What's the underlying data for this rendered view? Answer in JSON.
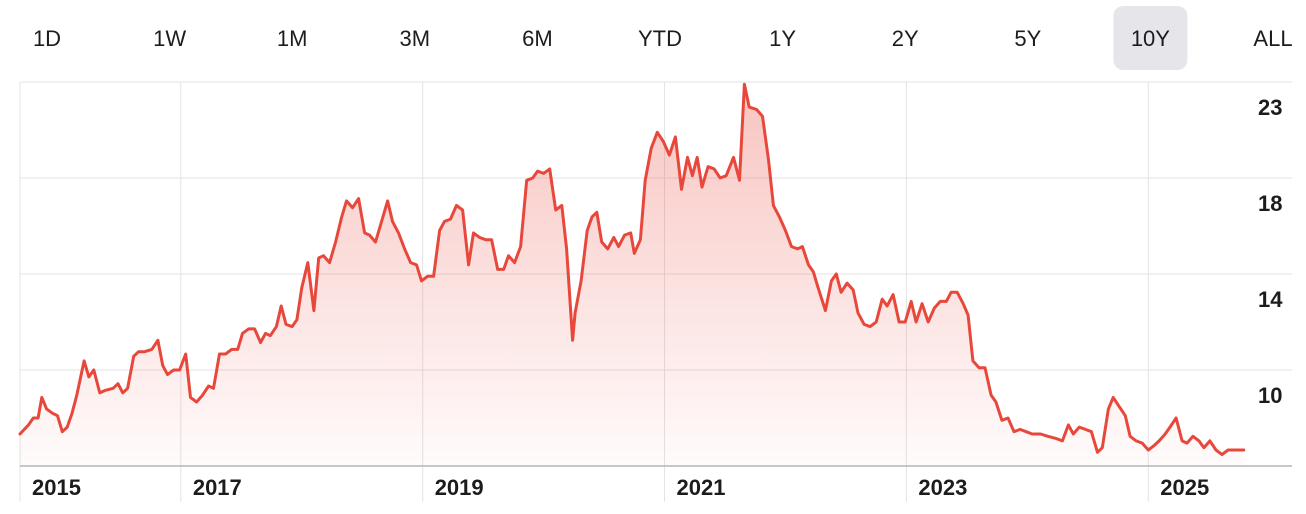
{
  "range_buttons": {
    "labels": [
      "1D",
      "1W",
      "1M",
      "3M",
      "6M",
      "YTD",
      "1Y",
      "2Y",
      "5Y",
      "10Y",
      "ALL"
    ],
    "selected": 9
  },
  "chart_data": {
    "type": "area",
    "color": "#e8483c",
    "grid": true,
    "xlim": [
      2015.67,
      2025.8
    ],
    "ylim": [
      5.8,
      22.6
    ],
    "xticks": [
      {
        "value": 2015.67,
        "label": "2015"
      },
      2017,
      2019,
      2021,
      2023,
      2025
    ],
    "yticks": [
      10,
      {
        "value": 14.2,
        "label": "14"
      },
      {
        "value": 18.4,
        "label": "18"
      },
      {
        "value": 22.6,
        "label": "23"
      }
    ],
    "x": [
      2015.67,
      2015.74,
      2015.78,
      2015.82,
      2015.85,
      2015.89,
      2015.94,
      2015.98,
      2016.02,
      2016.06,
      2016.1,
      2016.14,
      2016.2,
      2016.24,
      2016.28,
      2016.33,
      2016.37,
      2016.44,
      2016.48,
      2016.52,
      2016.56,
      2016.61,
      2016.65,
      2016.7,
      2016.76,
      2016.81,
      2016.85,
      2016.89,
      2016.94,
      2016.99,
      2017.04,
      2017.08,
      2017.13,
      2017.18,
      2017.23,
      2017.27,
      2017.32,
      2017.37,
      2017.42,
      2017.47,
      2017.51,
      2017.56,
      2017.61,
      2017.66,
      2017.7,
      2017.74,
      2017.79,
      2017.83,
      2017.87,
      2017.92,
      2017.96,
      2018.0,
      2018.05,
      2018.1,
      2018.14,
      2018.18,
      2018.23,
      2018.28,
      2018.33,
      2018.37,
      2018.42,
      2018.47,
      2018.52,
      2018.56,
      2018.61,
      2018.66,
      2018.71,
      2018.75,
      2018.8,
      2018.85,
      2018.9,
      2018.95,
      2018.99,
      2019.04,
      2019.09,
      2019.14,
      2019.18,
      2019.23,
      2019.28,
      2019.33,
      2019.38,
      2019.42,
      2019.47,
      2019.52,
      2019.57,
      2019.62,
      2019.67,
      2019.71,
      2019.76,
      2019.81,
      2019.86,
      2019.91,
      2019.95,
      2020.0,
      2020.05,
      2020.1,
      2020.15,
      2020.19,
      2020.24,
      2020.26,
      2020.31,
      2020.36,
      2020.4,
      2020.44,
      2020.48,
      2020.53,
      2020.58,
      2020.62,
      2020.67,
      2020.72,
      2020.75,
      2020.8,
      2020.84,
      2020.89,
      2020.94,
      2020.99,
      2021.04,
      2021.09,
      2021.14,
      2021.19,
      2021.23,
      2021.27,
      2021.31,
      2021.36,
      2021.41,
      2021.46,
      2021.51,
      2021.57,
      2021.62,
      2021.66,
      2021.7,
      2021.76,
      2021.81,
      2021.86,
      2021.9,
      2021.95,
      2022.0,
      2022.05,
      2022.1,
      2022.14,
      2022.19,
      2022.23,
      2022.27,
      2022.33,
      2022.38,
      2022.42,
      2022.46,
      2022.51,
      2022.56,
      2022.6,
      2022.65,
      2022.7,
      2022.75,
      2022.8,
      2022.84,
      2022.89,
      2022.94,
      2022.99,
      2023.04,
      2023.08,
      2023.13,
      2023.18,
      2023.23,
      2023.28,
      2023.33,
      2023.37,
      2023.42,
      2023.47,
      2023.51,
      2023.55,
      2023.6,
      2023.65,
      2023.7,
      2023.74,
      2023.79,
      2023.84,
      2023.89,
      2023.94,
      2023.99,
      2024.04,
      2024.11,
      2024.17,
      2024.24,
      2024.29,
      2024.34,
      2024.38,
      2024.43,
      2024.48,
      2024.53,
      2024.58,
      2024.62,
      2024.67,
      2024.71,
      2024.76,
      2024.81,
      2024.85,
      2024.9,
      2024.95,
      2025.0,
      2025.05,
      2025.09,
      2025.14,
      2025.18,
      2025.23,
      2025.28,
      2025.32,
      2025.37,
      2025.42,
      2025.46,
      2025.51,
      2025.56,
      2025.61,
      2025.66,
      2025.7,
      2025.75,
      2025.79
    ],
    "values": [
      7.2,
      7.6,
      7.9,
      7.9,
      8.8,
      8.3,
      8.1,
      8.0,
      7.3,
      7.5,
      8.1,
      8.9,
      10.4,
      9.7,
      10.0,
      9.0,
      9.1,
      9.2,
      9.4,
      9.0,
      9.2,
      10.6,
      10.8,
      10.8,
      10.9,
      11.3,
      10.2,
      9.8,
      10.0,
      10.0,
      10.7,
      8.8,
      8.6,
      8.9,
      9.3,
      9.2,
      10.7,
      10.7,
      10.9,
      10.9,
      11.6,
      11.8,
      11.8,
      11.2,
      11.6,
      11.5,
      11.9,
      12.8,
      12.0,
      11.9,
      12.2,
      13.6,
      14.7,
      12.6,
      14.9,
      15.0,
      14.7,
      15.6,
      16.7,
      17.4,
      17.1,
      17.5,
      16.0,
      15.9,
      15.6,
      16.5,
      17.4,
      16.5,
      16.0,
      15.3,
      14.7,
      14.6,
      13.9,
      14.1,
      14.1,
      16.1,
      16.5,
      16.6,
      17.2,
      17.0,
      14.6,
      16.0,
      15.8,
      15.7,
      15.7,
      14.4,
      14.4,
      15.0,
      14.7,
      15.4,
      18.3,
      18.4,
      18.7,
      18.6,
      18.8,
      17.0,
      17.2,
      15.3,
      11.3,
      12.5,
      13.9,
      16.1,
      16.7,
      16.9,
      15.6,
      15.3,
      15.8,
      15.4,
      15.9,
      16.0,
      15.1,
      15.7,
      18.3,
      19.7,
      20.4,
      20.0,
      19.4,
      20.2,
      17.9,
      19.3,
      18.5,
      19.3,
      18.0,
      18.9,
      18.8,
      18.4,
      18.5,
      19.3,
      18.3,
      22.5,
      21.5,
      21.4,
      21.1,
      19.2,
      17.2,
      16.7,
      16.1,
      15.4,
      15.3,
      15.4,
      14.6,
      14.3,
      13.6,
      12.6,
      13.9,
      14.2,
      13.4,
      13.8,
      13.5,
      12.5,
      12.0,
      11.9,
      12.1,
      13.1,
      12.8,
      13.3,
      12.1,
      12.1,
      13.0,
      12.1,
      12.9,
      12.1,
      12.7,
      13.0,
      13.0,
      13.4,
      13.4,
      12.9,
      12.4,
      10.4,
      10.1,
      10.1,
      8.9,
      8.6,
      7.8,
      7.9,
      7.3,
      7.4,
      7.3,
      7.2,
      7.2,
      7.1,
      7.0,
      6.9,
      7.6,
      7.2,
      7.5,
      7.4,
      7.3,
      6.4,
      6.6,
      8.3,
      8.8,
      8.4,
      8.0,
      7.1,
      6.9,
      6.8,
      6.5,
      6.7,
      6.9,
      7.2,
      7.5,
      7.9,
      6.9,
      6.8,
      7.1,
      6.9,
      6.6,
      6.9,
      6.5,
      6.3,
      6.5,
      6.5,
      6.5,
      6.5
    ]
  }
}
